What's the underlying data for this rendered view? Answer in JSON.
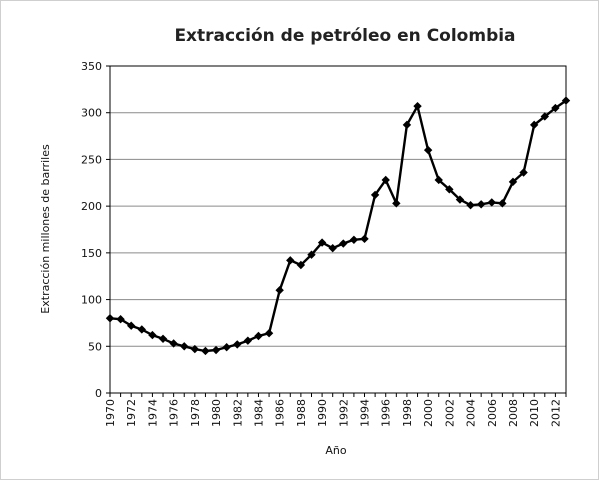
{
  "chart_data": {
    "type": "line",
    "title": "Extracción de petróleo en Colombia",
    "xlabel": "Año",
    "ylabel": "Extracción millones de barriles",
    "ylim": [
      0,
      350
    ],
    "y_ticks": [
      0,
      50,
      100,
      150,
      200,
      250,
      300,
      350
    ],
    "x_tick_labels": [
      "1970",
      "1972",
      "1974",
      "1976",
      "1978",
      "1980",
      "1982",
      "1984",
      "1986",
      "1988",
      "1990",
      "1992",
      "1994",
      "1996",
      "1998",
      "2000",
      "2002",
      "2004",
      "2006",
      "2008",
      "2010",
      "2012"
    ],
    "grid": "horizontal",
    "legend": "none",
    "line_color": "#000000",
    "marker": "diamond",
    "x": [
      1970,
      1971,
      1972,
      1973,
      1974,
      1975,
      1976,
      1977,
      1978,
      1979,
      1980,
      1981,
      1982,
      1983,
      1984,
      1985,
      1986,
      1987,
      1988,
      1989,
      1990,
      1991,
      1992,
      1993,
      1994,
      1995,
      1996,
      1997,
      1998,
      1999,
      2000,
      2001,
      2002,
      2003,
      2004,
      2005,
      2006,
      2007,
      2008,
      2009,
      2010,
      2011,
      2012,
      2013
    ],
    "y": [
      80,
      79,
      72,
      68,
      62,
      58,
      53,
      50,
      47,
      45,
      46,
      49,
      52,
      56,
      61,
      64,
      110,
      142,
      137,
      148,
      161,
      155,
      160,
      164,
      165,
      212,
      228,
      203,
      287,
      307,
      260,
      228,
      218,
      207,
      201,
      202,
      204,
      203,
      226,
      236,
      287,
      296,
      305,
      313
    ]
  }
}
